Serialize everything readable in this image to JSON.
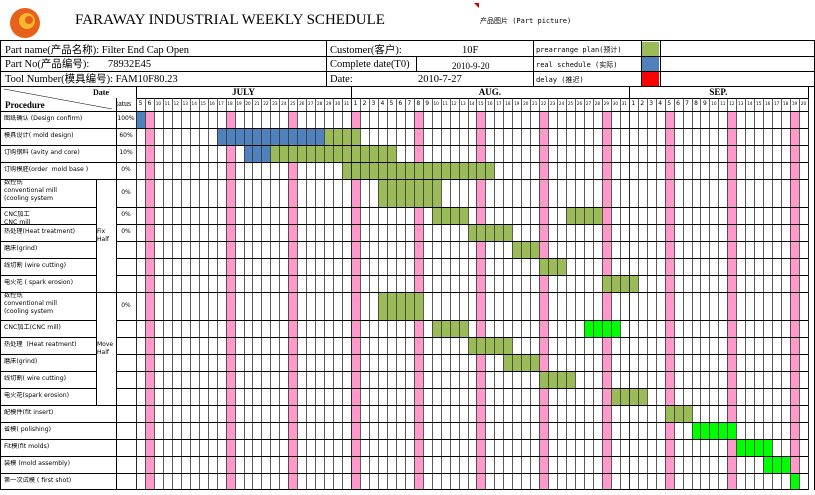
{
  "title": "FARAWAY INDUSTRIAL  WEEKLY SCHEDULE",
  "logo_text": "FARAWAY",
  "part_picture_label": "产品图片 (Part picture)",
  "info": {
    "part_name": "Part name(产品名称): Filter End Cap Open",
    "part_no_label": "Part No(产品编号):",
    "part_no": "78932E45",
    "tool_number": "Tool Number(模具编号):  FAM10F80.23",
    "customer_label": "Customer(客户):",
    "customer": "10F",
    "complete_label": "Complete date(T0)",
    "complete_date": "2010-9-20",
    "date_label": "Date:",
    "date": "2010-7-27"
  },
  "legend": [
    {
      "label": "prearrange plan(预计)",
      "color": "#9BBB59"
    },
    {
      "label": "real schedule  (实际)",
      "color": "#4F81BD"
    },
    {
      "label": "delay  (推迟)",
      "color": "#FF0000"
    }
  ],
  "header": {
    "date_label": "Date",
    "procedure_label": "Procedure",
    "status_label": "tatus"
  },
  "months": [
    {
      "name": "JULY",
      "days": [
        5,
        6,
        10,
        11,
        12,
        13,
        14,
        15,
        16,
        17,
        18,
        19,
        20,
        21,
        22,
        23,
        24,
        25,
        26,
        27,
        28,
        29,
        30,
        31
      ]
    },
    {
      "name": "AUG.",
      "days": [
        1,
        2,
        3,
        4,
        5,
        6,
        7,
        8,
        9,
        10,
        11,
        12,
        13,
        14,
        15,
        16,
        17,
        18,
        19,
        20,
        21,
        22,
        23,
        24,
        25,
        26,
        27,
        28,
        29,
        30,
        31
      ]
    },
    {
      "name": "SEP.",
      "days": [
        1,
        2,
        3,
        4,
        5,
        6,
        7,
        8,
        9,
        10,
        11,
        12,
        13,
        14,
        15,
        16,
        17,
        18,
        19,
        20
      ]
    }
  ],
  "sunday_columns": [
    1,
    10,
    17,
    24,
    31,
    38,
    45,
    52,
    59,
    66,
    73
  ],
  "groups": [
    {
      "label": "Fix Half",
      "rows": [
        4,
        9
      ]
    },
    {
      "label": "Move Half",
      "rows": [
        10,
        15
      ]
    }
  ],
  "rows": [
    {
      "name": "图纸确认 (Design confirm)",
      "status": "100%",
      "bars": [
        {
          "from": 0,
          "to": 0,
          "color": "blue"
        }
      ]
    },
    {
      "name": "模具设计( mold design)",
      "status": "60%",
      "bars": [
        {
          "from": 9,
          "to": 20,
          "color": "blue"
        },
        {
          "from": 21,
          "to": 24,
          "color": "green"
        }
      ]
    },
    {
      "name": "订购钢料 (avity and core)",
      "status": "10%",
      "bars": [
        {
          "from": 12,
          "to": 14,
          "color": "blue"
        },
        {
          "from": 15,
          "to": 28,
          "color": "green"
        }
      ]
    },
    {
      "name": "订购模胚(order  mold base )",
      "status": "0%",
      "bars": [
        {
          "from": 23,
          "to": 39,
          "color": "green"
        }
      ]
    },
    {
      "name": "数控铣\nconventional mill\n(cooling system",
      "status": "0%",
      "tall": true,
      "bars": [
        {
          "from": 27,
          "to": 33,
          "color": "green"
        }
      ]
    },
    {
      "name": "CNC加工\nCNC mill",
      "status": "0%",
      "bars": [
        {
          "from": 33,
          "to": 36,
          "color": "green"
        },
        {
          "from": 48,
          "to": 51,
          "color": "green"
        }
      ]
    },
    {
      "name": "热处理(Heat treatment)",
      "status": "0%",
      "bars": [
        {
          "from": 37,
          "to": 41,
          "color": "green"
        }
      ]
    },
    {
      "name": "磨床(grind)",
      "status": "",
      "bars": [
        {
          "from": 42,
          "to": 44,
          "color": "green"
        }
      ]
    },
    {
      "name": "线切割 (wire cutting)",
      "status": "",
      "bars": [
        {
          "from": 45,
          "to": 47,
          "color": "green"
        }
      ]
    },
    {
      "name": "电火花 ( spark erosion)",
      "status": "",
      "bars": [
        {
          "from": 52,
          "to": 55,
          "color": "green"
        }
      ]
    },
    {
      "name": "数控铣\nconventional mill\n(cooling system",
      "status": "0%",
      "tall": true,
      "bars": [
        {
          "from": 27,
          "to": 31,
          "color": "green"
        }
      ]
    },
    {
      "name": "CNC加工(CNC mill)",
      "status": "",
      "bars": [
        {
          "from": 33,
          "to": 36,
          "color": "green"
        },
        {
          "from": 50,
          "to": 53,
          "color": "bright"
        }
      ]
    },
    {
      "name": "热处理  (Heat reatment)",
      "status": "",
      "bars": [
        {
          "from": 37,
          "to": 41,
          "color": "green"
        }
      ]
    },
    {
      "name": "磨床(grind)",
      "status": "",
      "bars": [
        {
          "from": 41,
          "to": 44,
          "color": "green"
        }
      ]
    },
    {
      "name": "线切割( wire cutting)",
      "status": "",
      "bars": [
        {
          "from": 45,
          "to": 48,
          "color": "green"
        }
      ]
    },
    {
      "name": "电火花(spark erosion)",
      "status": "",
      "bars": [
        {
          "from": 53,
          "to": 56,
          "color": "green"
        }
      ]
    },
    {
      "name": "配模件(fit insert)",
      "status": "",
      "bars": [
        {
          "from": 59,
          "to": 61,
          "color": "green"
        }
      ]
    },
    {
      "name": "省模( polishing)",
      "status": "",
      "bars": [
        {
          "from": 62,
          "to": 66,
          "color": "bright"
        }
      ]
    },
    {
      "name": "Fit模(fit molds)",
      "status": "",
      "bars": [
        {
          "from": 67,
          "to": 70,
          "color": "bright"
        }
      ]
    },
    {
      "name": "装模 (mold assembly)",
      "status": "",
      "bars": [
        {
          "from": 70,
          "to": 72,
          "color": "bright"
        }
      ]
    },
    {
      "name": "第一次试模 ( first shot)",
      "status": "",
      "bars": [
        {
          "from": 73,
          "to": 73,
          "color": "bright"
        }
      ]
    }
  ],
  "colors": {
    "blue": "#4F81BD",
    "green": "#9BBB59",
    "bright": "#00FF00",
    "red": "#FF0000",
    "sunday": "#FF99CC",
    "logo_red": "#E8601C",
    "logo_gold": "#F5B82E"
  }
}
